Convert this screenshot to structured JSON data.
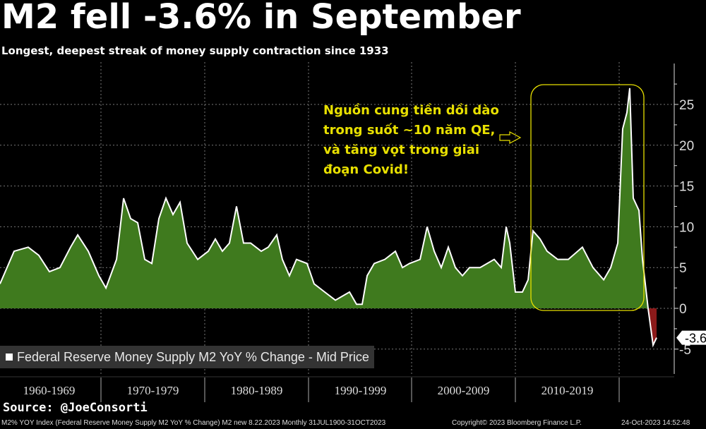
{
  "header": {
    "title": "M2 fell -3.6% in September",
    "subtitle": "Longest, deepest streak of money supply contraction since 1933"
  },
  "annotation": {
    "lines": [
      "Nguồn cung tiền dồi dào",
      "trong suốt ~10 năm QE,",
      "và tăng vọt trong giai",
      "đoạn Covid!"
    ]
  },
  "legend": {
    "label": "Federal Reserve Money Supply M2 YoY % Change - Mid Price"
  },
  "source": "Source: @JoeConsorti",
  "footer": {
    "index": "M2% YOY Index (Federal Reserve Money Supply M2 YoY % Change) M2 new 8.22.2023  Monthly 31JUL1900-31OCT2023",
    "copyright": "Copyright© 2023 Bloomberg Finance L.P.",
    "timestamp": "24-Oct-2023 14:52:48"
  },
  "colors": {
    "positive": "#3f7a1e",
    "negative": "#8b1a1a",
    "line": "#ffffff",
    "annotation": "#e8e000"
  },
  "chart_data": {
    "type": "area",
    "title": "M2 fell -3.6% in September",
    "xlabel": "",
    "ylabel": "",
    "ylim": [
      -6,
      29
    ],
    "xlim": [
      1959.75,
      2025.5
    ],
    "yticks": [
      -5,
      0,
      5,
      10,
      15,
      20,
      25
    ],
    "ytick_labels": [
      "-5",
      "0",
      "5",
      "10",
      "15",
      "20",
      "25"
    ],
    "xtick_labels": [
      "1960-1969",
      "1970-1979",
      "1980-1989",
      "1990-1999",
      "2000-2009",
      "2010-2019"
    ],
    "last_value_label": "-3.6",
    "grid": true,
    "legend": "bottom-left",
    "x": [
      1960.27,
      1961.63,
      1962.99,
      1964.01,
      1965.03,
      1966.05,
      1967.07,
      1967.76,
      1968.78,
      1969.8,
      1970.48,
      1971.5,
      1972.18,
      1972.86,
      1973.54,
      1974.22,
      1974.9,
      1975.58,
      1976.26,
      1976.94,
      1977.62,
      1978.3,
      1979.32,
      1980.34,
      1981.02,
      1981.7,
      1982.38,
      1983.06,
      1983.74,
      1984.42,
      1985.44,
      1986.12,
      1986.94,
      1987.48,
      1988.16,
      1988.84,
      1989.86,
      1990.54,
      1991.56,
      1992.59,
      1993.27,
      1993.95,
      1994.63,
      1995.17,
      1995.65,
      1996.33,
      1997.35,
      1998.37,
      1999.05,
      1999.73,
      2000.75,
      2001.43,
      2002.11,
      2002.79,
      2003.47,
      2004.15,
      2004.83,
      2005.51,
      2006.53,
      2007.89,
      2008.57,
      2009.05,
      2009.39,
      2009.93,
      2010.61,
      2011.16,
      2011.63,
      2012.31,
      2012.99,
      2014.01,
      2015.03,
      2016.39,
      2017.41,
      2018.44,
      2019.12,
      2019.8,
      2020.27,
      2020.68,
      2020.95,
      2021.29,
      2021.84,
      2022.18,
      2022.72,
      2023.2,
      2023.54
    ],
    "values": [
      3,
      7,
      7.5,
      6.5,
      4.5,
      5,
      7.5,
      9,
      7,
      4,
      2.5,
      6,
      13.5,
      11,
      10.5,
      6,
      5.5,
      11,
      13.5,
      11.5,
      13,
      8,
      6,
      7,
      8.5,
      7,
      8,
      12.5,
      8,
      8,
      7,
      7.5,
      9,
      6,
      4,
      6,
      5.5,
      3,
      2,
      1,
      1.5,
      2,
      0.5,
      0.5,
      4,
      5.5,
      6,
      7,
      5,
      5.5,
      6,
      10,
      7,
      5,
      7.5,
      5,
      4,
      5,
      5,
      6,
      5,
      10,
      8,
      2,
      2,
      3.5,
      9.5,
      8.5,
      7,
      6,
      6,
      7.5,
      5,
      3.5,
      5,
      8,
      22,
      24,
      27,
      13.5,
      12,
      6,
      0,
      -4.5,
      -3.6
    ]
  }
}
